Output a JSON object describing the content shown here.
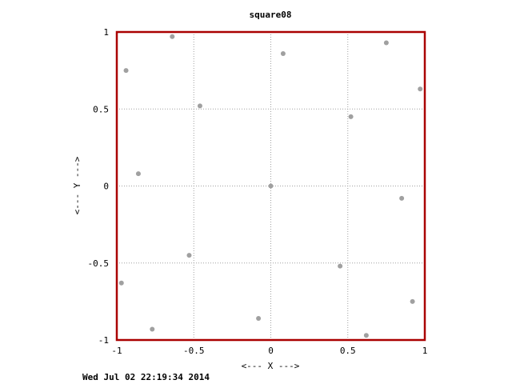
{
  "chart_data": {
    "type": "scatter",
    "title": "square08",
    "xlabel": "<--- X --->",
    "ylabel": "<--- Y --->",
    "xlim": [
      -1,
      1
    ],
    "ylim": [
      -1,
      1
    ],
    "xticks": [
      -1,
      -0.5,
      0,
      0.5,
      1
    ],
    "yticks": [
      -1,
      -0.5,
      0,
      0.5,
      1
    ],
    "xtick_labels": [
      "-1",
      "-0.5",
      "0",
      "0.5",
      "1"
    ],
    "ytick_labels": [
      "-1",
      "-0.5",
      "0",
      "0.5",
      "1"
    ],
    "grid": true,
    "frame_color": "#aa0000",
    "point_color": "#a0a0a0",
    "points": [
      {
        "x": -0.64,
        "y": 0.97
      },
      {
        "x": 0.08,
        "y": 0.86
      },
      {
        "x": 0.75,
        "y": 0.93
      },
      {
        "x": -0.94,
        "y": 0.75
      },
      {
        "x": -0.46,
        "y": 0.52
      },
      {
        "x": 0.52,
        "y": 0.45
      },
      {
        "x": 0.97,
        "y": 0.63
      },
      {
        "x": -0.86,
        "y": 0.08
      },
      {
        "x": 0.0,
        "y": 0.0
      },
      {
        "x": 0.85,
        "y": -0.08
      },
      {
        "x": -0.53,
        "y": -0.45
      },
      {
        "x": 0.45,
        "y": -0.52
      },
      {
        "x": -0.97,
        "y": -0.63
      },
      {
        "x": 0.92,
        "y": -0.75
      },
      {
        "x": -0.08,
        "y": -0.86
      },
      {
        "x": -0.77,
        "y": -0.93
      },
      {
        "x": 0.62,
        "y": -0.97
      }
    ]
  },
  "timestamp": "Wed Jul 02 22:19:34 2014"
}
